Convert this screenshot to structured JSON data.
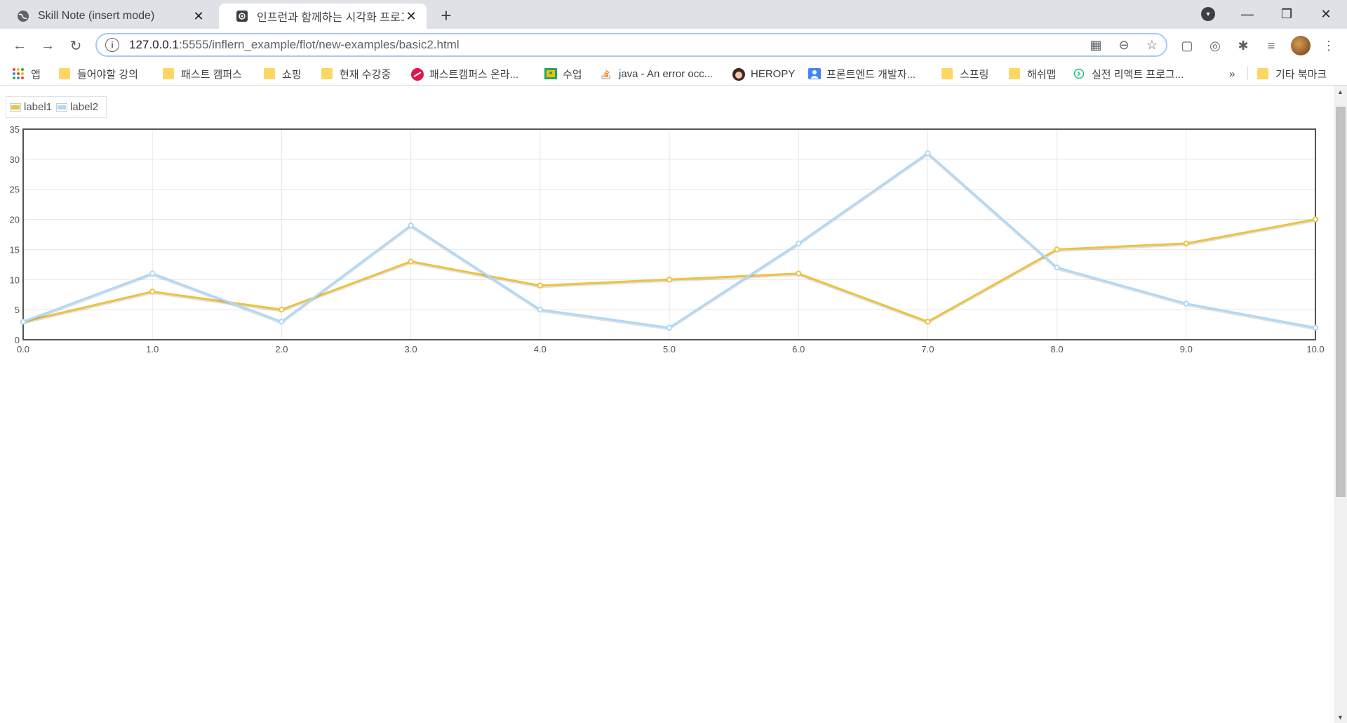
{
  "tabs": [
    {
      "title": "Skill Note (insert mode)",
      "favicon": "globe-icon",
      "active": false
    },
    {
      "title": "인프런과 함께하는 시각화 프로그",
      "favicon": "radio-icon",
      "active": true
    }
  ],
  "toolbar": {
    "url_host": "127.0.0.1",
    "url_path": ":5555/inflern_example/flot/new-examples/basic2.html"
  },
  "bookmarks": [
    {
      "label": "앱",
      "icon": "apps-grid-icon"
    },
    {
      "label": "들어야할 강의",
      "icon": "folder-icon"
    },
    {
      "label": "패스트 캠퍼스",
      "icon": "folder-icon"
    },
    {
      "label": "쇼핑",
      "icon": "folder-icon"
    },
    {
      "label": "현재 수강중",
      "icon": "folder-icon"
    },
    {
      "label": "패스트캠퍼스 온라...",
      "icon": "fastcampus-icon"
    },
    {
      "label": "수업",
      "icon": "classroom-icon"
    },
    {
      "label": "java - An error occ...",
      "icon": "stackoverflow-icon"
    },
    {
      "label": "HEROPY",
      "icon": "heropy-avatar-icon"
    },
    {
      "label": "프론트엔드 개발자...",
      "icon": "contact-icon"
    },
    {
      "label": "스프링",
      "icon": "folder-icon"
    },
    {
      "label": "해쉬맵",
      "icon": "folder-icon"
    },
    {
      "label": "실전 리액트 프로그...",
      "icon": "inflearn-icon"
    }
  ],
  "bookmarks_overflow": "»",
  "other_bookmarks": "기타 북마크",
  "colors": {
    "series1": "#edc240",
    "series2": "#afd8f8",
    "active_tab_bg": "#ffffff",
    "tabbar_bg": "#dee1e6"
  },
  "chart_data": {
    "type": "line",
    "title": "",
    "xlabel": "",
    "ylabel": "",
    "xlim": [
      0,
      10
    ],
    "ylim": [
      0,
      35
    ],
    "xticks": [
      "0.0",
      "1.0",
      "2.0",
      "3.0",
      "4.0",
      "5.0",
      "6.0",
      "7.0",
      "8.0",
      "9.0",
      "10.0"
    ],
    "yticks": [
      "0",
      "5",
      "10",
      "15",
      "20",
      "25",
      "30",
      "35"
    ],
    "grid": true,
    "legend_position": "top-left",
    "x": [
      0,
      1,
      2,
      3,
      4,
      5,
      6,
      7,
      8,
      9,
      10
    ],
    "series": [
      {
        "name": "label1",
        "color": "#edc240",
        "values": [
          3,
          8,
          5,
          13,
          9,
          10,
          11,
          3,
          15,
          16,
          20
        ]
      },
      {
        "name": "label2",
        "color": "#afd8f8",
        "values": [
          3,
          11,
          3,
          19,
          5,
          2,
          16,
          31,
          12,
          6,
          2
        ]
      }
    ]
  }
}
